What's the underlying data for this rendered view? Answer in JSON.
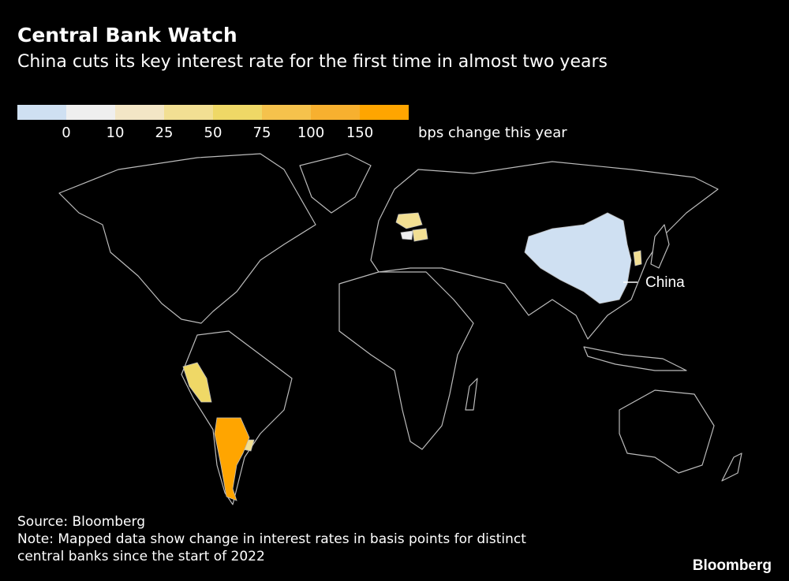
{
  "title": "Central Bank Watch",
  "subtitle": "China cuts its key interest rate for the first time in almost two years",
  "legend": {
    "colors": [
      "#cfe0f2",
      "#efefef",
      "#f3e6c6",
      "#f2df93",
      "#efd866",
      "#f5c24c",
      "#f7b02f",
      "#ffa500"
    ],
    "ticks": [
      "0",
      "10",
      "25",
      "50",
      "75",
      "100",
      "150"
    ],
    "unit_label": "bps change this year"
  },
  "map": {
    "highlighted": [
      {
        "region": "China",
        "bin": 0
      },
      {
        "region": "Hungary",
        "bin": 1
      },
      {
        "region": "Poland",
        "bin": 3
      },
      {
        "region": "Romania",
        "bin": 3
      },
      {
        "region": "South Korea",
        "bin": 3
      },
      {
        "region": "Peru",
        "bin": 4
      },
      {
        "region": "Uruguay",
        "bin": 3
      },
      {
        "region": "Argentina",
        "bin": 7
      }
    ],
    "annotation": "China"
  },
  "source": "Source: Bloomberg",
  "note_line1": "Note: Mapped data show change in interest rates in basis points for distinct",
  "note_line2": "central banks since the start of 2022",
  "brand": "Bloomberg"
}
